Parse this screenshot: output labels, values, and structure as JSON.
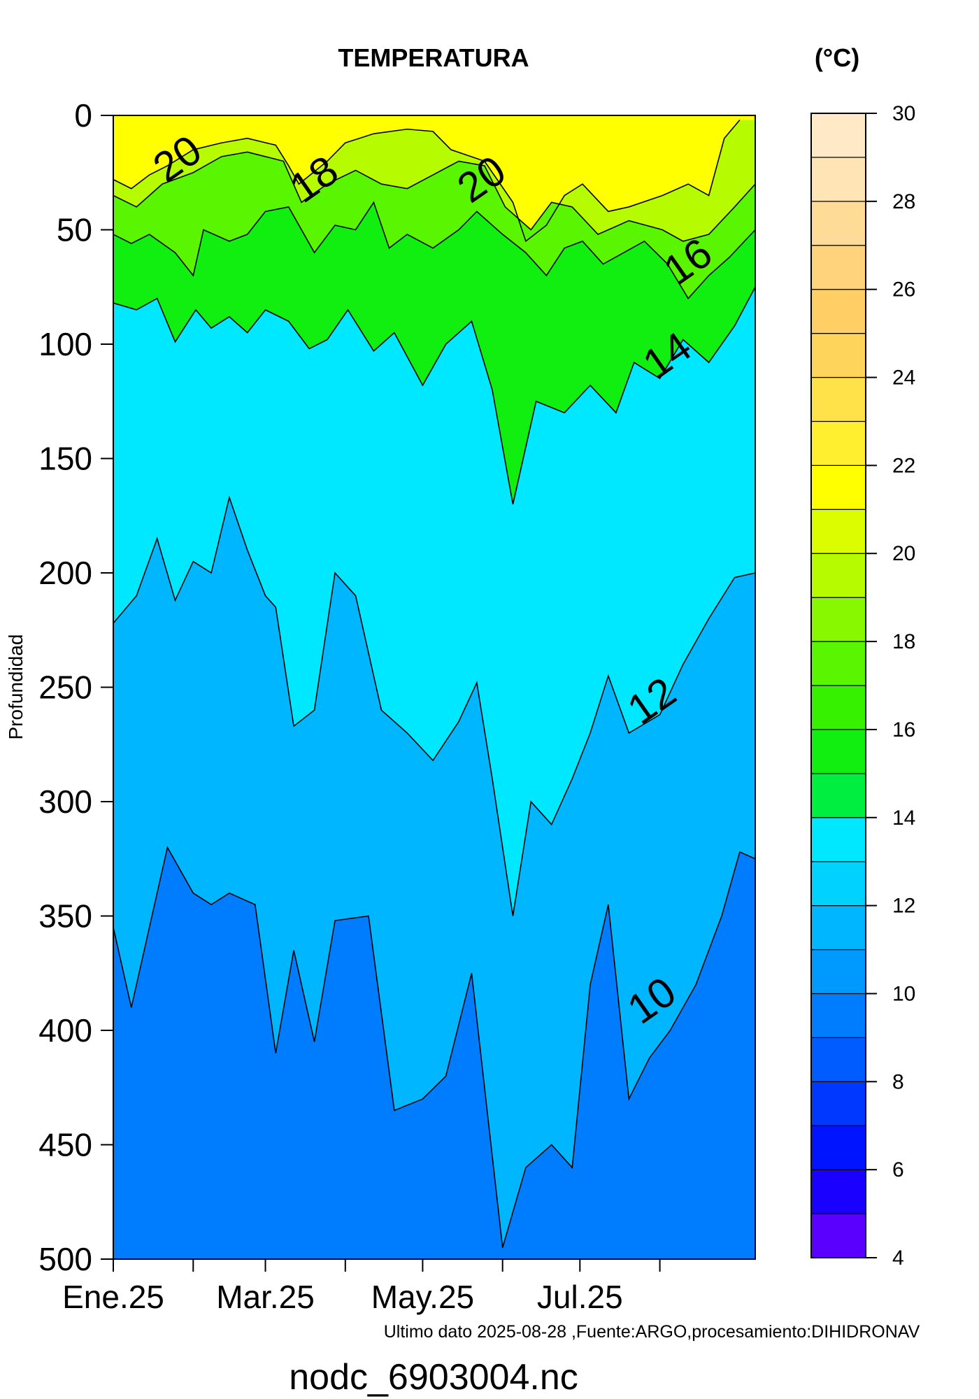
{
  "chart_data": {
    "type": "contour",
    "title": "TEMPERATURA",
    "units_label": "(°C)",
    "ylabel": "Profundidad",
    "xlabel": "",
    "source_note": "Ultimo dato 2025-08-28 ,Fuente:ARGO,procesamiento:DIHIDRONAV",
    "file_label": "nodc_6903004.nc",
    "ylim": [
      0,
      500
    ],
    "y_reversed": true,
    "y_ticks": [
      "0",
      "50",
      "100",
      "150",
      "200",
      "250",
      "300",
      "350",
      "400",
      "450",
      "500"
    ],
    "x_ticks": [
      {
        "label": "Ene.25",
        "date": "2025-01-01"
      },
      {
        "label": "",
        "date": "2025-02-01"
      },
      {
        "label": "Mar.25",
        "date": "2025-03-01"
      },
      {
        "label": "",
        "date": "2025-04-01"
      },
      {
        "label": "May.25",
        "date": "2025-05-01"
      },
      {
        "label": "",
        "date": "2025-06-01"
      },
      {
        "label": "Jul.25",
        "date": "2025-07-01"
      },
      {
        "label": "",
        "date": "2025-08-01"
      }
    ],
    "xlim": [
      "2025-01-01",
      "2025-09-07"
    ],
    "colorbar": {
      "levels": [
        4,
        5,
        6,
        7,
        8,
        9,
        10,
        11,
        12,
        13,
        14,
        15,
        16,
        17,
        18,
        19,
        20,
        21,
        22,
        23,
        24,
        25,
        26,
        27,
        28,
        29,
        30
      ],
      "tick_labels": [
        "4",
        "6",
        "8",
        "10",
        "12",
        "14",
        "16",
        "18",
        "20",
        "22",
        "24",
        "26",
        "28",
        "30"
      ],
      "colors": [
        "#5a00ff",
        "#1a00ff",
        "#0014ff",
        "#0038ff",
        "#005cff",
        "#007dff",
        "#009aff",
        "#00b6ff",
        "#00d2ff",
        "#00e8ff",
        "#00ee40",
        "#10ef10",
        "#36f200",
        "#5af500",
        "#88f800",
        "#b6fb00",
        "#dcfc00",
        "#ffff00",
        "#ffef2e",
        "#ffe14a",
        "#ffd45a",
        "#ffcf66",
        "#ffd37c",
        "#ffdb98",
        "#ffe4b5",
        "#ffe9c6"
      ]
    },
    "contour_labels": [
      {
        "text": "20",
        "date": "2025-01-29",
        "depth": 24
      },
      {
        "text": "18",
        "date": "2025-03-23",
        "depth": 33
      },
      {
        "text": "20",
        "date": "2025-05-27",
        "depth": 33
      },
      {
        "text": "16",
        "date": "2025-08-15",
        "depth": 69
      },
      {
        "text": "14",
        "date": "2025-08-07",
        "depth": 110
      },
      {
        "text": "12",
        "date": "2025-08-01",
        "depth": 261
      },
      {
        "text": "10",
        "date": "2025-08-01",
        "depth": 392
      }
    ],
    "isotherms": [
      {
        "value": 20,
        "points": [
          [
            "2025-01-01",
            28
          ],
          [
            "2025-01-08",
            32
          ],
          [
            "2025-01-15",
            26
          ],
          [
            "2025-01-22",
            22
          ],
          [
            "2025-02-01",
            15
          ],
          [
            "2025-02-12",
            12
          ],
          [
            "2025-02-22",
            10
          ],
          [
            "2025-03-05",
            13
          ],
          [
            "2025-03-10",
            22
          ],
          [
            "2025-03-14",
            30
          ],
          [
            "2025-03-25",
            20
          ],
          [
            "2025-04-01",
            12
          ],
          [
            "2025-04-12",
            8
          ],
          [
            "2025-04-25",
            6
          ],
          [
            "2025-05-05",
            7
          ],
          [
            "2025-05-12",
            15
          ],
          [
            "2025-05-25",
            20
          ],
          [
            "2025-06-05",
            38
          ],
          [
            "2025-06-10",
            55
          ],
          [
            "2025-06-18",
            48
          ],
          [
            "2025-06-25",
            35
          ],
          [
            "2025-07-02",
            30
          ],
          [
            "2025-07-12",
            42
          ],
          [
            "2025-07-20",
            40
          ],
          [
            "2025-08-02",
            35
          ],
          [
            "2025-08-12",
            30
          ],
          [
            "2025-08-20",
            35
          ],
          [
            "2025-08-26",
            10
          ],
          [
            "2025-09-01",
            2
          ]
        ]
      },
      {
        "value": 18,
        "points": [
          [
            "2025-01-01",
            35
          ],
          [
            "2025-01-10",
            40
          ],
          [
            "2025-01-20",
            30
          ],
          [
            "2025-02-01",
            25
          ],
          [
            "2025-02-12",
            18
          ],
          [
            "2025-02-22",
            16
          ],
          [
            "2025-03-08",
            20
          ],
          [
            "2025-03-15",
            38
          ],
          [
            "2025-03-25",
            30
          ],
          [
            "2025-04-05",
            24
          ],
          [
            "2025-04-15",
            30
          ],
          [
            "2025-04-25",
            32
          ],
          [
            "2025-05-05",
            26
          ],
          [
            "2025-05-15",
            20
          ],
          [
            "2025-05-25",
            22
          ],
          [
            "2025-06-02",
            40
          ],
          [
            "2025-06-12",
            50
          ],
          [
            "2025-06-20",
            38
          ],
          [
            "2025-06-28",
            40
          ],
          [
            "2025-07-08",
            52
          ],
          [
            "2025-07-20",
            46
          ],
          [
            "2025-08-02",
            50
          ],
          [
            "2025-08-10",
            55
          ],
          [
            "2025-08-20",
            52
          ],
          [
            "2025-08-30",
            40
          ],
          [
            "2025-09-07",
            30
          ]
        ]
      },
      {
        "value": 16,
        "points": [
          [
            "2025-01-01",
            52
          ],
          [
            "2025-01-08",
            56
          ],
          [
            "2025-01-15",
            52
          ],
          [
            "2025-01-25",
            60
          ],
          [
            "2025-02-01",
            70
          ],
          [
            "2025-02-05",
            50
          ],
          [
            "2025-02-15",
            55
          ],
          [
            "2025-02-22",
            52
          ],
          [
            "2025-03-01",
            42
          ],
          [
            "2025-03-10",
            40
          ],
          [
            "2025-03-20",
            60
          ],
          [
            "2025-03-28",
            48
          ],
          [
            "2025-04-05",
            50
          ],
          [
            "2025-04-12",
            38
          ],
          [
            "2025-04-18",
            58
          ],
          [
            "2025-04-25",
            52
          ],
          [
            "2025-05-05",
            58
          ],
          [
            "2025-05-15",
            50
          ],
          [
            "2025-05-22",
            42
          ],
          [
            "2025-06-01",
            52
          ],
          [
            "2025-06-10",
            60
          ],
          [
            "2025-06-18",
            70
          ],
          [
            "2025-06-25",
            58
          ],
          [
            "2025-07-02",
            55
          ],
          [
            "2025-07-10",
            65
          ],
          [
            "2025-07-18",
            60
          ],
          [
            "2025-07-26",
            55
          ],
          [
            "2025-08-04",
            65
          ],
          [
            "2025-08-12",
            80
          ],
          [
            "2025-08-20",
            70
          ],
          [
            "2025-08-28",
            62
          ],
          [
            "2025-09-07",
            50
          ]
        ]
      },
      {
        "value": 14,
        "points": [
          [
            "2025-01-01",
            82
          ],
          [
            "2025-01-10",
            85
          ],
          [
            "2025-01-18",
            80
          ],
          [
            "2025-01-25",
            99
          ],
          [
            "2025-02-02",
            85
          ],
          [
            "2025-02-08",
            93
          ],
          [
            "2025-02-15",
            88
          ],
          [
            "2025-02-22",
            95
          ],
          [
            "2025-03-01",
            85
          ],
          [
            "2025-03-10",
            90
          ],
          [
            "2025-03-18",
            102
          ],
          [
            "2025-03-25",
            98
          ],
          [
            "2025-04-02",
            85
          ],
          [
            "2025-04-12",
            103
          ],
          [
            "2025-04-20",
            95
          ],
          [
            "2025-05-01",
            118
          ],
          [
            "2025-05-10",
            100
          ],
          [
            "2025-05-20",
            90
          ],
          [
            "2025-05-28",
            120
          ],
          [
            "2025-06-05",
            170
          ],
          [
            "2025-06-14",
            125
          ],
          [
            "2025-06-25",
            130
          ],
          [
            "2025-07-05",
            118
          ],
          [
            "2025-07-15",
            130
          ],
          [
            "2025-07-22",
            108
          ],
          [
            "2025-08-01",
            115
          ],
          [
            "2025-08-10",
            98
          ],
          [
            "2025-08-20",
            108
          ],
          [
            "2025-08-30",
            92
          ],
          [
            "2025-09-07",
            75
          ]
        ]
      },
      {
        "value": 12,
        "points": [
          [
            "2025-01-01",
            222
          ],
          [
            "2025-01-10",
            210
          ],
          [
            "2025-01-18",
            185
          ],
          [
            "2025-01-25",
            212
          ],
          [
            "2025-02-01",
            195
          ],
          [
            "2025-02-08",
            200
          ],
          [
            "2025-02-15",
            167
          ],
          [
            "2025-02-22",
            190
          ],
          [
            "2025-03-01",
            210
          ],
          [
            "2025-03-05",
            215
          ],
          [
            "2025-03-12",
            267
          ],
          [
            "2025-03-20",
            260
          ],
          [
            "2025-03-28",
            200
          ],
          [
            "2025-04-05",
            210
          ],
          [
            "2025-04-15",
            260
          ],
          [
            "2025-04-25",
            270
          ],
          [
            "2025-05-05",
            282
          ],
          [
            "2025-05-15",
            265
          ],
          [
            "2025-05-22",
            248
          ],
          [
            "2025-05-28",
            290
          ],
          [
            "2025-06-05",
            350
          ],
          [
            "2025-06-12",
            300
          ],
          [
            "2025-06-20",
            310
          ],
          [
            "2025-06-28",
            290
          ],
          [
            "2025-07-05",
            270
          ],
          [
            "2025-07-12",
            245
          ],
          [
            "2025-07-20",
            270
          ],
          [
            "2025-08-01",
            262
          ],
          [
            "2025-08-10",
            240
          ],
          [
            "2025-08-20",
            220
          ],
          [
            "2025-08-30",
            202
          ],
          [
            "2025-09-07",
            200
          ]
        ]
      },
      {
        "value": 10,
        "points": [
          [
            "2025-01-01",
            355
          ],
          [
            "2025-01-08",
            390
          ],
          [
            "2025-01-15",
            355
          ],
          [
            "2025-01-22",
            320
          ],
          [
            "2025-02-01",
            340
          ],
          [
            "2025-02-08",
            345
          ],
          [
            "2025-02-15",
            340
          ],
          [
            "2025-02-25",
            345
          ],
          [
            "2025-03-05",
            410
          ],
          [
            "2025-03-12",
            365
          ],
          [
            "2025-03-20",
            405
          ],
          [
            "2025-03-28",
            352
          ],
          [
            "2025-04-10",
            350
          ],
          [
            "2025-04-20",
            435
          ],
          [
            "2025-05-01",
            430
          ],
          [
            "2025-05-10",
            420
          ],
          [
            "2025-05-20",
            375
          ],
          [
            "2025-06-01",
            495
          ],
          [
            "2025-06-10",
            460
          ],
          [
            "2025-06-20",
            450
          ],
          [
            "2025-06-28",
            460
          ],
          [
            "2025-07-05",
            380
          ],
          [
            "2025-07-12",
            345
          ],
          [
            "2025-07-20",
            430
          ],
          [
            "2025-07-28",
            412
          ],
          [
            "2025-08-05",
            400
          ],
          [
            "2025-08-15",
            380
          ],
          [
            "2025-08-25",
            350
          ],
          [
            "2025-09-01",
            322
          ],
          [
            "2025-09-07",
            325
          ]
        ]
      }
    ]
  }
}
